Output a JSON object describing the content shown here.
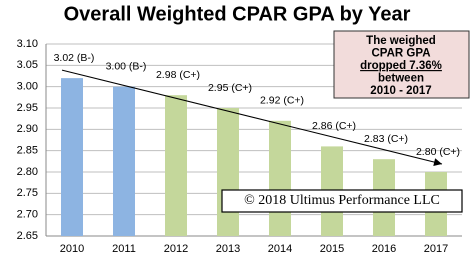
{
  "chart_data": {
    "type": "bar",
    "title": "Overall Weighted CPAR GPA by Year",
    "categories": [
      "2010",
      "2011",
      "2012",
      "2013",
      "2014",
      "2015",
      "2016",
      "2017"
    ],
    "values": [
      3.02,
      3.0,
      2.98,
      2.95,
      2.92,
      2.86,
      2.83,
      2.8
    ],
    "value_labels": [
      "3.02 (B-)",
      "3.00 (B-)",
      "2.98 (C+)",
      "2.95 (C+)",
      "2.92 (C+)",
      "2.86 (C+)",
      "2.83 (C+)",
      "2.80 (C+)"
    ],
    "colors": [
      "#8db4e2",
      "#8db4e2",
      "#c4d79b",
      "#c4d79b",
      "#c4d79b",
      "#c4d79b",
      "#c4d79b",
      "#c4d79b"
    ],
    "ylim": [
      2.65,
      3.1
    ],
    "yticks": [
      2.65,
      {
        "value": 2.7,
        "label": "2.70"
      },
      2.75,
      {
        "value": 2.8,
        "label": "2.80"
      },
      2.85,
      {
        "value": 2.9,
        "label": "2.90"
      },
      2.95,
      {
        "value": 3.0,
        "label": "3.00"
      },
      3.05,
      {
        "value": 3.1,
        "label": "3.10"
      }
    ],
    "grid": true,
    "annotation": [
      "The weighed",
      "CPAR GPA",
      "dropped 7.36%",
      "between",
      "2010 - 2017"
    ],
    "footer": "© 2018 Ultimus Performance LLC"
  }
}
